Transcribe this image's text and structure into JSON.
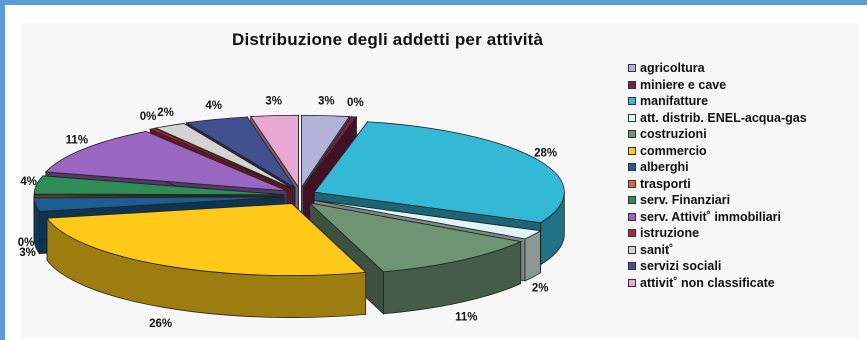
{
  "chart_data": {
    "type": "pie",
    "title": "Distribuzione degli addetti per attività",
    "labels": [
      "agricoltura",
      "miniere e cave",
      "manifatture",
      "att. distrib. ENEL-acqua-gas",
      "costruzioni",
      "commercio",
      "alberghi",
      "trasporti",
      "serv. Finanziari",
      "serv. Attivit˚ immobiliari",
      "istruzione",
      "sanit˚",
      "servizi sociali",
      "attivit˚ non classificate"
    ],
    "values": [
      3,
      0,
      28,
      2,
      11,
      26,
      3,
      0,
      4,
      11,
      0,
      2,
      4,
      3
    ],
    "value_labels": [
      "3%",
      "0%",
      "28%",
      "2%",
      "11%",
      "26%",
      "3%",
      "0%",
      "4%",
      "11%",
      "0%",
      "2%",
      "4%",
      "3%"
    ],
    "colors": [
      "#b3b3d9",
      "#7a1f45",
      "#33b8d6",
      "#dff5f5",
      "#6e9474",
      "#ffc91a",
      "#1c5e91",
      "#e8622d",
      "#2e8c55",
      "#9966c2",
      "#b8243b",
      "#d3d3d3",
      "#42508f",
      "#e8a8d1"
    ],
    "legend_position": "right",
    "exploded": true,
    "three_d": true
  }
}
